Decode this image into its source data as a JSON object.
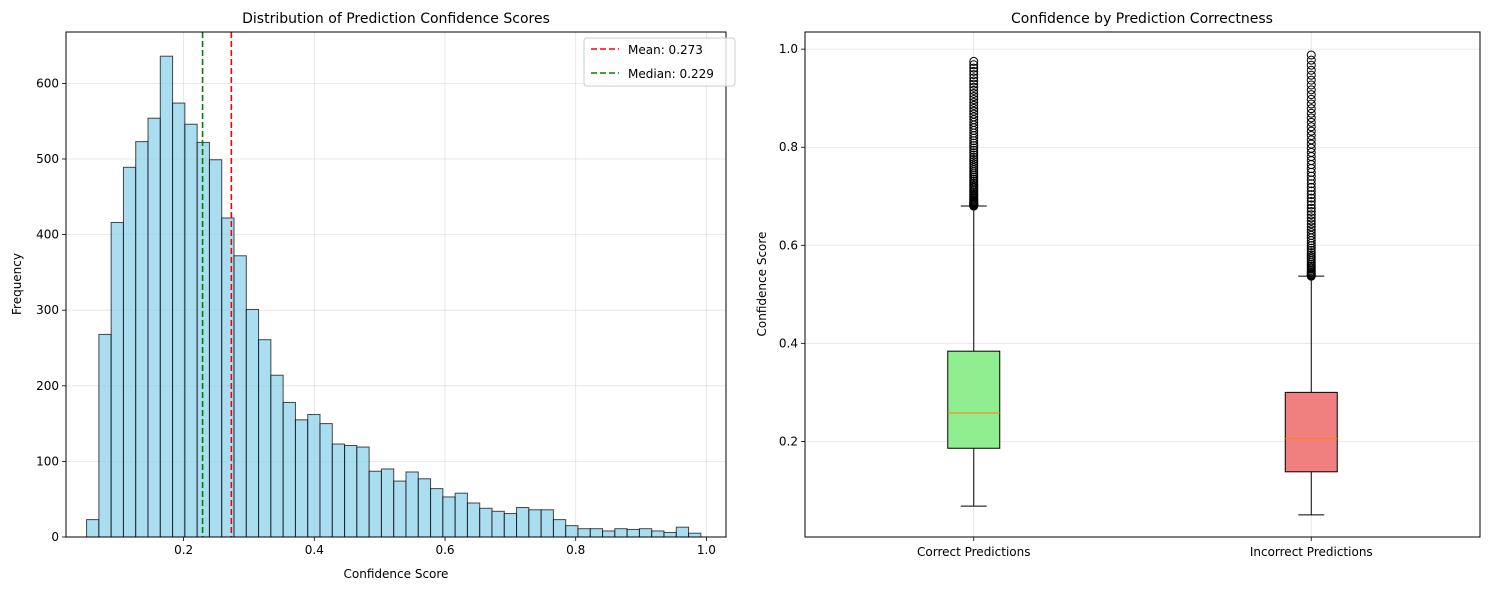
{
  "chart_data": [
    {
      "type": "bar",
      "title": "Distribution of Prediction Confidence Scores",
      "xlabel": "Confidence Score",
      "ylabel": "Frequency",
      "xlim": [
        0.02,
        1.03
      ],
      "ylim": [
        0,
        668
      ],
      "xticks": [
        0.2,
        0.4,
        0.6,
        0.8,
        1.0
      ],
      "xtick_labels": [
        "0.2",
        "0.4",
        "0.6",
        "0.8",
        "1.0"
      ],
      "yticks": [
        0,
        100,
        200,
        300,
        400,
        500,
        600
      ],
      "ytick_labels": [
        "0",
        "100",
        "200",
        "300",
        "400",
        "500",
        "600"
      ],
      "grid": true,
      "bin_start": 0.0515,
      "bin_width": 0.0188,
      "values": [
        23,
        268,
        416,
        489,
        523,
        554,
        636,
        574,
        546,
        522,
        499,
        422,
        372,
        301,
        261,
        214,
        178,
        155,
        162,
        150,
        123,
        121,
        119,
        87,
        90,
        74,
        86,
        77,
        64,
        53,
        58,
        45,
        38,
        34,
        31,
        39,
        36,
        36,
        23,
        15,
        11,
        11,
        8,
        11,
        10,
        11,
        8,
        6,
        13,
        5
      ],
      "bar_color": "#87ceeb",
      "lines": [
        {
          "label": "Mean: 0.273",
          "x": 0.273,
          "color": "#ff0000"
        },
        {
          "label": "Median: 0.229",
          "x": 0.229,
          "color": "#008000"
        }
      ],
      "legend": "top-right"
    },
    {
      "type": "box",
      "title": "Confidence by Prediction Correctness",
      "xlabel": "",
      "ylabel": "Confidence Score",
      "ylim": [
        0.005,
        1.035
      ],
      "yticks": [
        0.2,
        0.4,
        0.6,
        0.8,
        1.0
      ],
      "ytick_labels": [
        "0.2",
        "0.4",
        "0.6",
        "0.8",
        "1.0"
      ],
      "grid": true,
      "categories": [
        "Correct Predictions",
        "Incorrect Predictions"
      ],
      "boxes": [
        {
          "whisker_low": 0.068,
          "q1": 0.186,
          "median": 0.258,
          "q3": 0.384,
          "whisker_high": 0.68,
          "outlier_min": 0.68,
          "outlier_max": 0.975,
          "color": "#90ee90"
        },
        {
          "whisker_low": 0.05,
          "q1": 0.138,
          "median": 0.206,
          "q3": 0.3,
          "whisker_high": 0.537,
          "outlier_min": 0.537,
          "outlier_max": 0.988,
          "color": "#f08080"
        }
      ],
      "median_color": "#ff7f0e"
    }
  ]
}
